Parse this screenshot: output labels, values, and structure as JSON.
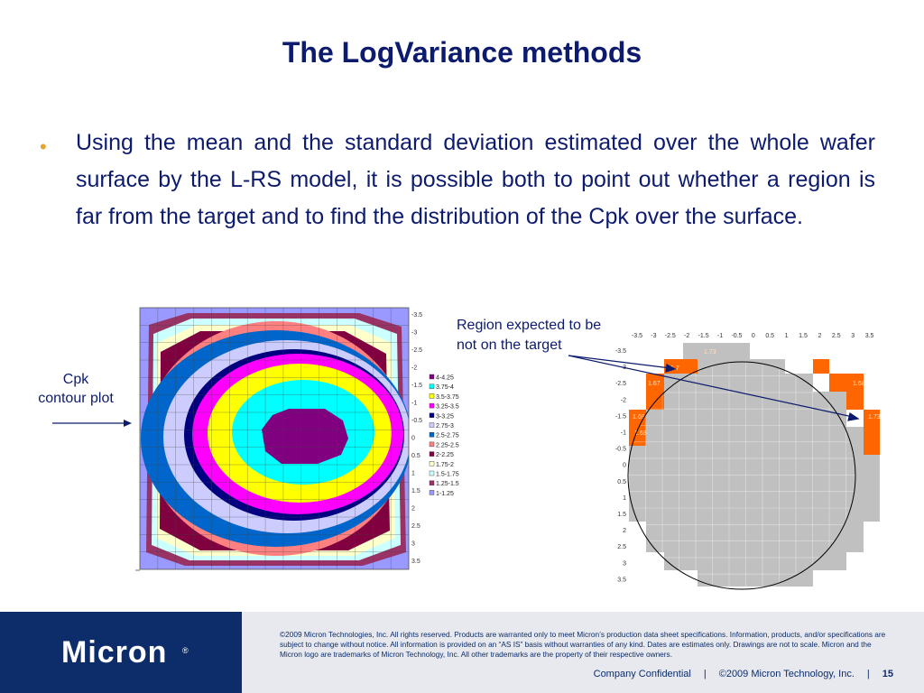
{
  "slide": {
    "title": "The LogVariance methods",
    "bullet": "Using the mean and the standard deviation estimated over the whole wafer surface by the L-RS model, it is possible both to point out whether a region is far from the target and to find the distribution of the Cpk over the surface.",
    "cpk_label_line1": "Cpk",
    "cpk_label_line2": "contour plot",
    "region_label_line1": "Region expected to be",
    "region_label_line2": "not on the target"
  },
  "contour_plot": {
    "y_ticks": [
      "-3.5",
      "-3",
      "-2.5",
      "-2",
      "-1.5",
      "-1",
      "-0.5",
      "0",
      "0.5",
      "1",
      "1.5",
      "2",
      "2.5",
      "3",
      "3.5"
    ],
    "legend": [
      {
        "label": "4-4.25",
        "color": "#800080"
      },
      {
        "label": "3.75-4",
        "color": "#00ffff"
      },
      {
        "label": "3.5-3.75",
        "color": "#ffff00"
      },
      {
        "label": "3.25-3.5",
        "color": "#ff00ff"
      },
      {
        "label": "3-3.25",
        "color": "#000080"
      },
      {
        "label": "2.75-3",
        "color": "#ccccff"
      },
      {
        "label": "2.5-2.75",
        "color": "#0066cc"
      },
      {
        "label": "2.25-2.5",
        "color": "#ff8080"
      },
      {
        "label": "2-2.25",
        "color": "#800040"
      },
      {
        "label": "1.75-2",
        "color": "#ffffcc"
      },
      {
        "label": "1.5-1.75",
        "color": "#ccffff"
      },
      {
        "label": "1.25-1.5",
        "color": "#993366"
      },
      {
        "label": "1-1.25",
        "color": "#9999ff"
      }
    ]
  },
  "wafer_map": {
    "x_ticks": [
      "-3.5",
      "-3",
      "-2.5",
      "-2",
      "-1.5",
      "-1",
      "-0.5",
      "0",
      "0.5",
      "1",
      "1.5",
      "2",
      "2.5",
      "3",
      "3.5"
    ],
    "y_ticks": [
      "-3.5",
      "-3",
      "-2.5",
      "-2",
      "-1.5",
      "-1",
      "-0.5",
      "0",
      "0.5",
      "1",
      "1.5",
      "2",
      "2.5",
      "3",
      "3.5"
    ],
    "cell_labels": [
      "1.73",
      "1.7",
      "1.67",
      "1.68",
      "1.69",
      "1.69",
      "1.73"
    ],
    "colors": {
      "off_target": "#ff6600",
      "die": "#c0c0c0"
    }
  },
  "footer": {
    "logo": "Micron",
    "legal": "©2009 Micron Technologies, Inc. All rights reserved. Products are warranted only to meet Micron’s production data sheet specifications. Information, products, and/or specifications are subject to change without notice. All information is provided on an “AS IS” basis without warranties of any kind. Dates are estimates only. Drawings are not to scale. Micron and the Micron logo are trademarks of Micron Technology, Inc. All other trademarks are the property of their respective owners.",
    "confidential": "Company Confidential",
    "separator": "|",
    "copyright": "©2009 Micron Technology, Inc.",
    "page": "15"
  }
}
